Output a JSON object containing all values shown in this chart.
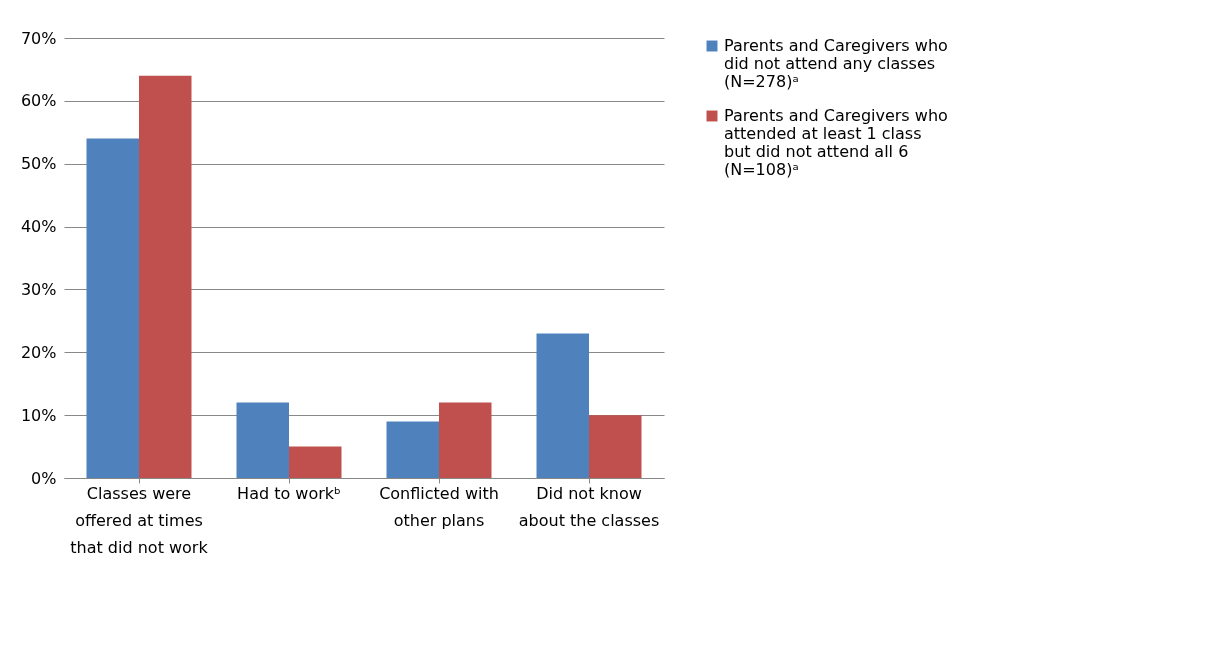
{
  "chart_data": {
    "type": "bar",
    "categories": [
      "Classes were offered at times that did not work",
      "Had to workᵇ",
      "Conflicted with other plans",
      "Did not know about the classes"
    ],
    "series": [
      {
        "name": "Parents and Caregivers who did not attend any classes (N=278)ᵃ",
        "color": "#4f81bd",
        "values": [
          54,
          12,
          9,
          23
        ]
      },
      {
        "name": "Parents and Caregivers who attended at least 1 class but did not attend all 6 (N=108)ᵃ",
        "color": "#c0504d",
        "values": [
          64,
          5,
          12,
          10
        ]
      }
    ],
    "ylim": [
      0,
      70
    ],
    "yticks": [
      {
        "value": 0,
        "label": "0%"
      },
      {
        "value": 10,
        "label": "10%"
      },
      {
        "value": 20,
        "label": "20%"
      },
      {
        "value": 30,
        "label": "30%"
      },
      {
        "value": 40,
        "label": "40%"
      },
      {
        "value": 50,
        "label": "50%"
      },
      {
        "value": 60,
        "label": "60%"
      },
      {
        "value": 70,
        "label": "70%"
      }
    ],
    "grid": "y",
    "legend": "right"
  }
}
